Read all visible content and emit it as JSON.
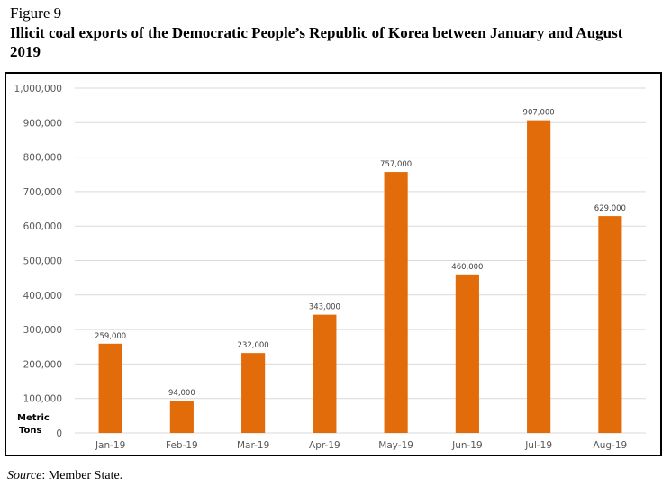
{
  "figure": {
    "label": "Figure 9",
    "title": "Illicit coal exports of the Democratic People’s Republic of Korea between January and August 2019",
    "source_prefix": "Source",
    "source_rest": ": Member State."
  },
  "chart_data": {
    "type": "bar",
    "categories": [
      "Jan-19",
      "Feb-19",
      "Mar-19",
      "Apr-19",
      "May-19",
      "Jun-19",
      "Jul-19",
      "Aug-19"
    ],
    "values": [
      259000,
      94000,
      232000,
      343000,
      757000,
      460000,
      907000,
      629000
    ],
    "data_labels": [
      "259,000",
      "94,000",
      "232,000",
      "343,000",
      "757,000",
      "460,000",
      "907,000",
      "629,000"
    ],
    "ylabel_lines": [
      "Metric",
      "Tons"
    ],
    "ylim": [
      0,
      1000000
    ],
    "yticks": [
      0,
      100000,
      200000,
      300000,
      400000,
      500000,
      600000,
      700000,
      800000,
      900000,
      1000000
    ],
    "ytick_labels": [
      "0",
      "100,000",
      "200,000",
      "300,000",
      "400,000",
      "500,000",
      "600,000",
      "700,000",
      "800,000",
      "900,000",
      "1,000,000"
    ],
    "grid": true,
    "bar_color": "#E36C0A",
    "grid_color": "#D9D9D9"
  }
}
